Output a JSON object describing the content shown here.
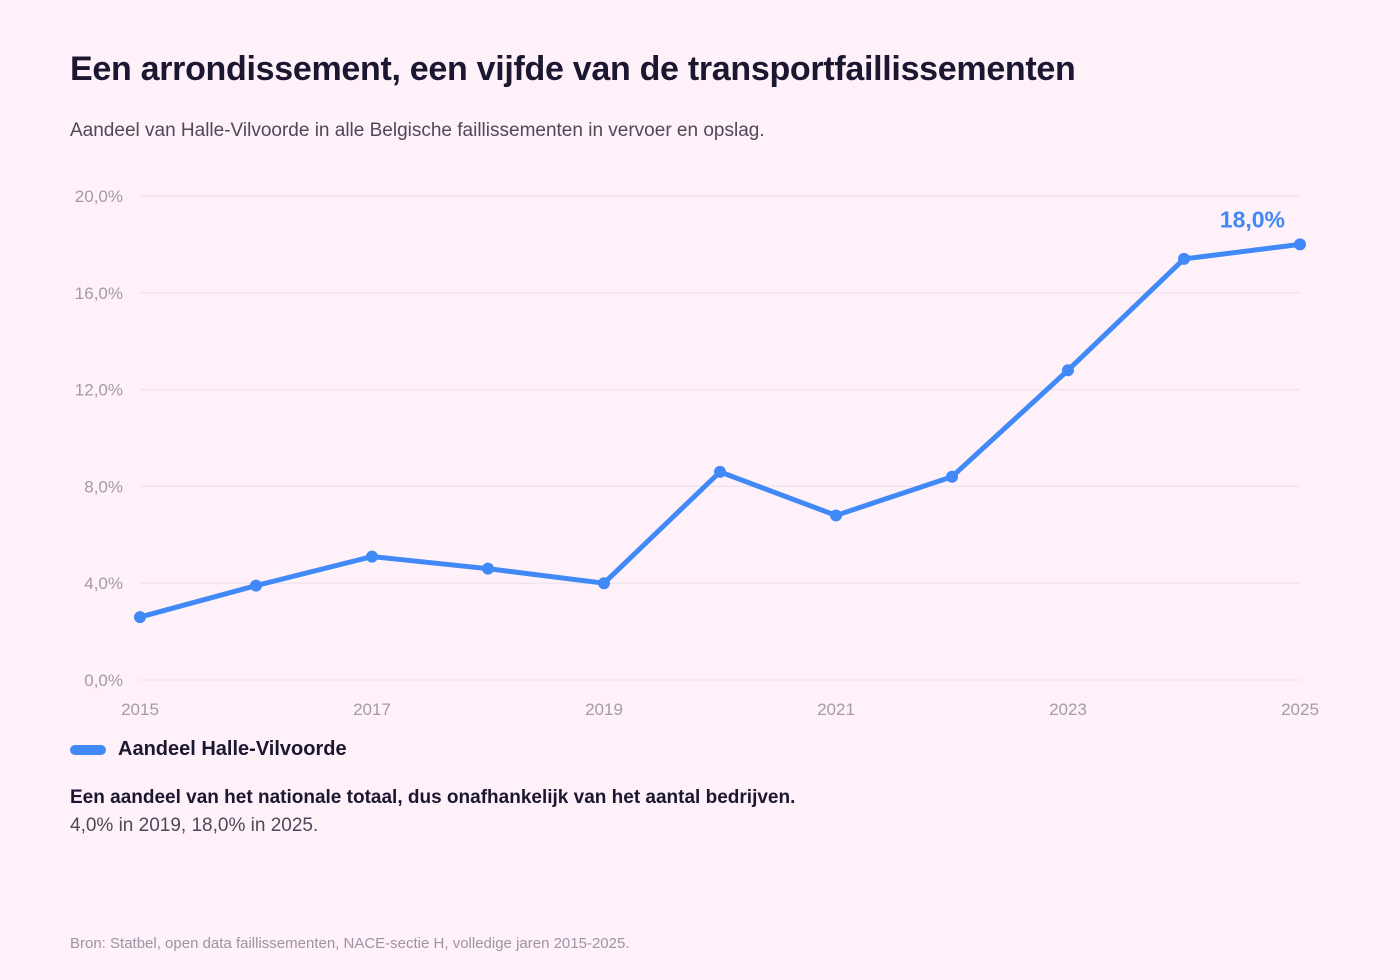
{
  "title": "Een arrondissement, een vijfde van de transportfaillissementen",
  "subtitle": "Aandeel van Halle-Vilvoorde in alle Belgische faillissementen in vervoer en opslag.",
  "colors": {
    "line": "#4189f6",
    "grid": "#ece0ea",
    "background": "#fff1fa"
  },
  "chart_data": {
    "type": "line",
    "x": [
      2015,
      2016,
      2017,
      2018,
      2019,
      2020,
      2021,
      2022,
      2023,
      2024,
      2025
    ],
    "x_tick_labels": [
      "2015",
      "2017",
      "2019",
      "2021",
      "2023",
      "2025"
    ],
    "x_tick_values": [
      2015,
      2017,
      2019,
      2021,
      2023,
      2025
    ],
    "y_tick_labels": [
      "0,0%",
      "4,0%",
      "8,0%",
      "12,0%",
      "16,0%",
      "20,0%"
    ],
    "y_tick_values": [
      0,
      4,
      8,
      12,
      16,
      20
    ],
    "ylim": [
      0,
      20
    ],
    "grid": true,
    "series": [
      {
        "name": "Aandeel Halle-Vilvoorde",
        "values": [
          2.6,
          3.9,
          5.1,
          4.6,
          4.0,
          8.6,
          6.8,
          8.4,
          12.8,
          17.4,
          18.0
        ]
      }
    ],
    "end_label": "18,0%",
    "legend_position": "bottom-left"
  },
  "note": {
    "bold": "Een aandeel van het nationale totaal, dus onafhankelijk van het aantal bedrijven.",
    "text": "4,0% in 2019, 18,0% in 2025."
  },
  "source": "Bron: Statbel, open data faillissementen, NACE-sectie H, volledige jaren 2015-2025."
}
